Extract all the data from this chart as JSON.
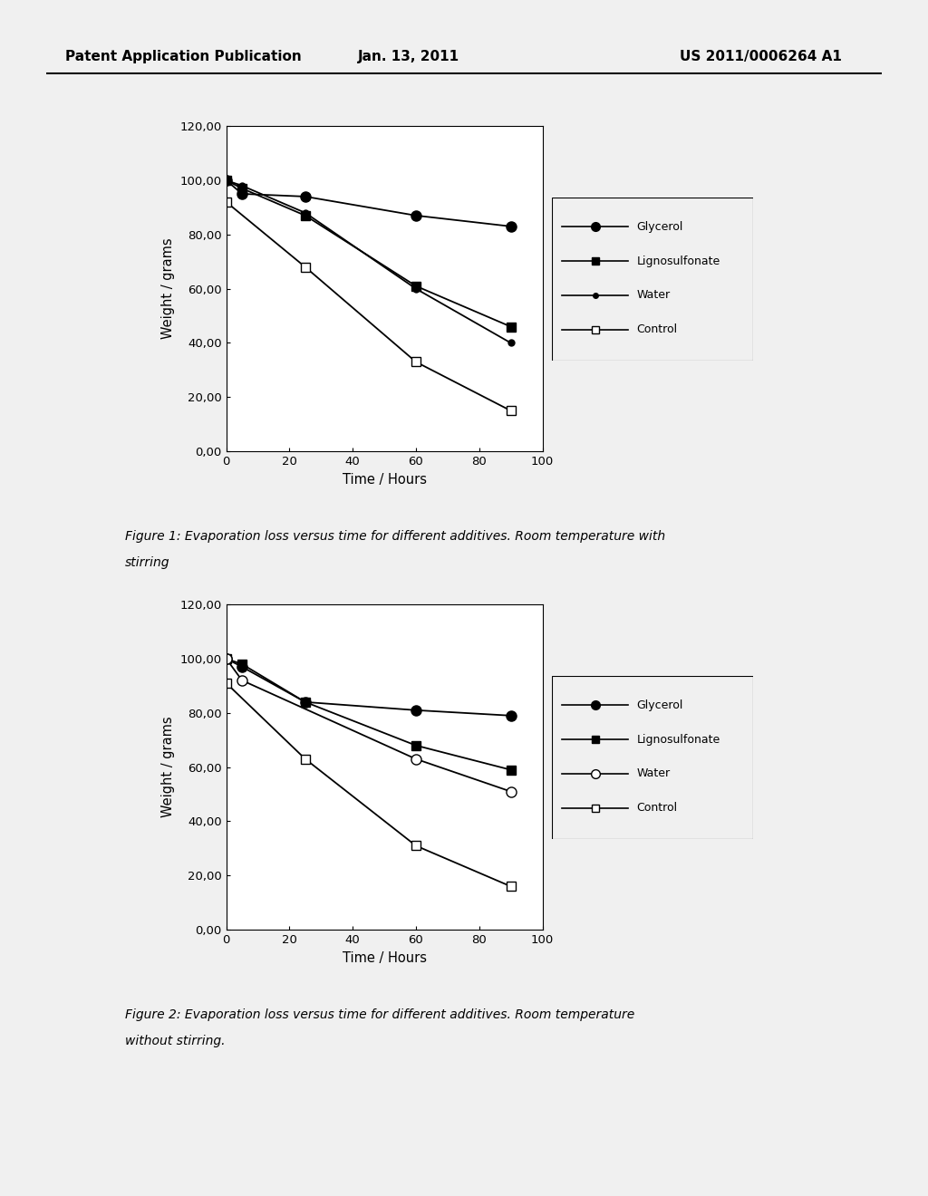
{
  "header_left": "Patent Application Publication",
  "header_center": "Jan. 13, 2011",
  "header_right": "US 2011/0006264 A1",
  "fig1": {
    "glycerol_x": [
      0,
      5,
      25,
      60,
      90
    ],
    "glycerol_y": [
      100.0,
      95.0,
      94.0,
      87.0,
      83.0
    ],
    "lignosulfonate_x": [
      0,
      5,
      25,
      60,
      90
    ],
    "lignosulfonate_y": [
      100.0,
      97.0,
      87.0,
      61.0,
      46.0
    ],
    "water_x": [
      0,
      5,
      25,
      60,
      90
    ],
    "water_y": [
      100.0,
      98.0,
      88.0,
      60.0,
      40.0
    ],
    "control_x": [
      0,
      5,
      25,
      60,
      90
    ],
    "control_y": [
      92.0,
      null,
      68.0,
      33.0,
      15.0
    ],
    "xlabel": "Time / Hours",
    "ylabel": "Weight / grams",
    "xlim": [
      0,
      100
    ],
    "ylim": [
      0,
      120
    ],
    "yticks": [
      0,
      20,
      40,
      60,
      80,
      100,
      120
    ],
    "xticks": [
      0,
      20,
      40,
      60,
      80,
      100
    ],
    "caption1": "Figure 1: Evaporation loss versus time for different additives. Room temperature with",
    "caption2": "stirring"
  },
  "fig2": {
    "glycerol_x": [
      0,
      5,
      25,
      60,
      90
    ],
    "glycerol_y": [
      100.0,
      97.0,
      84.0,
      81.0,
      79.0
    ],
    "lignosulfonate_x": [
      0,
      5,
      25,
      60,
      90
    ],
    "lignosulfonate_y": [
      100.0,
      98.0,
      84.0,
      68.0,
      59.0
    ],
    "water_x": [
      0,
      5,
      25,
      60,
      90
    ],
    "water_y": [
      100.0,
      92.0,
      null,
      63.0,
      51.0
    ],
    "control_x": [
      0,
      5,
      25,
      60,
      90
    ],
    "control_y": [
      91.0,
      null,
      63.0,
      31.0,
      16.0
    ],
    "xlabel": "Time / Hours",
    "ylabel": "Weight / grams",
    "xlim": [
      0,
      100
    ],
    "ylim": [
      0,
      120
    ],
    "yticks": [
      0,
      20,
      40,
      60,
      80,
      100,
      120
    ],
    "xticks": [
      0,
      20,
      40,
      60,
      80,
      100
    ],
    "caption1": "Figure 2: Evaporation loss versus time for different additives. Room temperature",
    "caption2": "without stirring."
  },
  "ytick_labels": [
    "0,00",
    "20,00",
    "40,00",
    "60,00",
    "80,00",
    "100,00",
    "120,00"
  ],
  "xtick_labels": [
    "0",
    "20",
    "40",
    "60",
    "80",
    "100"
  ],
  "bg_color": "#f0f0f0",
  "plot_bg": "#ffffff",
  "outer_box_color": "#d8d8d8"
}
